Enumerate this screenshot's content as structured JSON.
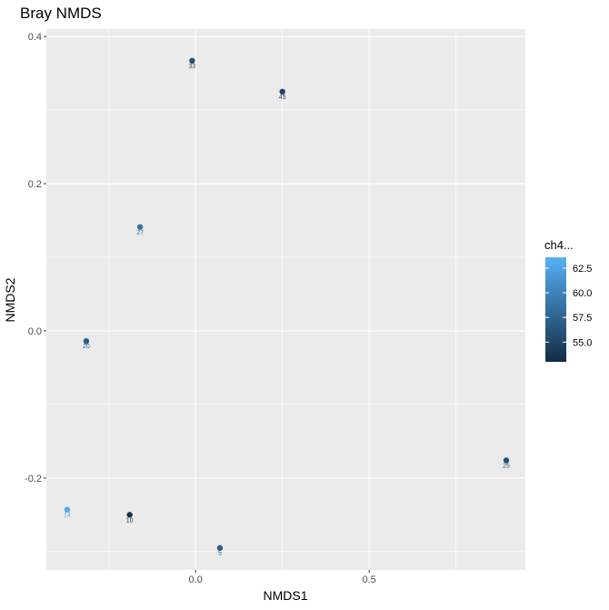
{
  "chart_data": {
    "type": "scatter",
    "title": "Bray NMDS",
    "xlabel": "NMDS1",
    "ylabel": "NMDS2",
    "xlim": [
      -0.43,
      0.95
    ],
    "ylim": [
      -0.325,
      0.41
    ],
    "x_ticks": [
      0.0,
      0.5
    ],
    "x_tick_labels": [
      "0.0",
      "0.5"
    ],
    "y_ticks": [
      -0.2,
      0.0,
      0.2,
      0.4
    ],
    "y_tick_labels": [
      "-0.2",
      "0.0",
      "0.2",
      "0.4"
    ],
    "grid": true,
    "legend": {
      "title": "ch4...",
      "placement": "right",
      "min": 53.0,
      "max": 63.6,
      "breaks": [
        55.0,
        57.5,
        60.0,
        62.5
      ],
      "break_labels": [
        "55.0",
        "57.5",
        "60.0",
        "62.5"
      ],
      "low_color": "#132B43",
      "high_color": "#56B1F7"
    },
    "points": [
      {
        "label": "33",
        "x": -0.01,
        "y": 0.367,
        "color_value": 56.0
      },
      {
        "label": "45",
        "x": 0.25,
        "y": 0.325,
        "color_value": 55.0
      },
      {
        "label": "27",
        "x": -0.16,
        "y": 0.141,
        "color_value": 58.5
      },
      {
        "label": "20",
        "x": -0.315,
        "y": -0.014,
        "color_value": 57.0
      },
      {
        "label": "25",
        "x": 0.895,
        "y": -0.176,
        "color_value": 56.0
      },
      {
        "label": "14",
        "x": -0.37,
        "y": -0.243,
        "color_value": 63.0
      },
      {
        "label": "10",
        "x": -0.19,
        "y": -0.25,
        "color_value": 53.5
      },
      {
        "label": "5",
        "x": 0.07,
        "y": -0.295,
        "color_value": 57.0
      }
    ]
  }
}
